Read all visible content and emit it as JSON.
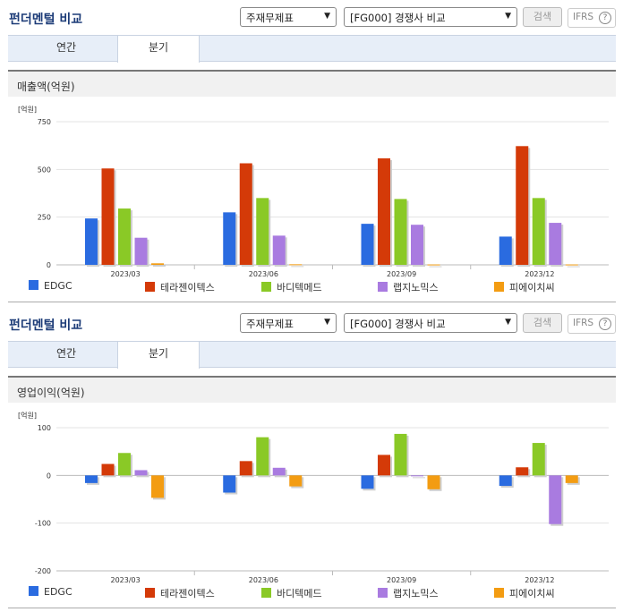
{
  "toolbar": {
    "title": "펀더멘털 비교",
    "select1": "주재무제표",
    "select2": "[FG000] 경쟁사 비교",
    "search_label": "검색",
    "ifrs_label": "IFRS",
    "help_label": "?"
  },
  "tabs": [
    "연간",
    "분기"
  ],
  "active_tab": "분기",
  "chevron_icon": "chevron-down-icon",
  "colors": {
    "EDGC": "#2a6be0",
    "테라젠이텍스": "#d43a08",
    "바디텍메드": "#8ac926",
    "랩지노믹스": "#a97be0",
    "피에이치씨": "#f39c12"
  },
  "chart_data": [
    {
      "type": "bar",
      "title": "매출액(억원)",
      "unit": "[억원]",
      "categories": [
        "2023/03",
        "2023/06",
        "2023/09",
        "2023/12"
      ],
      "ylim": [
        0,
        750
      ],
      "yticks": [
        0,
        250,
        500,
        750
      ],
      "grid": true,
      "legend_position": "bottom",
      "series": [
        {
          "name": "EDGC",
          "values": [
            243,
            275,
            215,
            148
          ]
        },
        {
          "name": "테라젠이텍스",
          "values": [
            505,
            532,
            558,
            622
          ]
        },
        {
          "name": "바디텍메드",
          "values": [
            295,
            350,
            345,
            350
          ]
        },
        {
          "name": "랩지노믹스",
          "values": [
            142,
            153,
            210,
            220
          ]
        },
        {
          "name": "피에이치씨",
          "values": [
            8,
            3,
            2,
            2
          ]
        }
      ]
    },
    {
      "type": "bar",
      "title": "영업이익(억원)",
      "unit": "[억원]",
      "categories": [
        "2023/03",
        "2023/06",
        "2023/09",
        "2023/12"
      ],
      "ylim": [
        -200,
        100
      ],
      "yticks": [
        -200,
        -100,
        0,
        100
      ],
      "grid": true,
      "legend_position": "bottom",
      "series": [
        {
          "name": "EDGC",
          "values": [
            -16,
            -36,
            -28,
            -22
          ]
        },
        {
          "name": "테라젠이텍스",
          "values": [
            24,
            30,
            43,
            17
          ]
        },
        {
          "name": "바디텍메드",
          "values": [
            47,
            80,
            87,
            68
          ]
        },
        {
          "name": "랩지노믹스",
          "values": [
            11,
            16,
            0,
            -102
          ]
        },
        {
          "name": "피에이치씨",
          "values": [
            -47,
            -23,
            -29,
            -16
          ]
        }
      ]
    }
  ]
}
